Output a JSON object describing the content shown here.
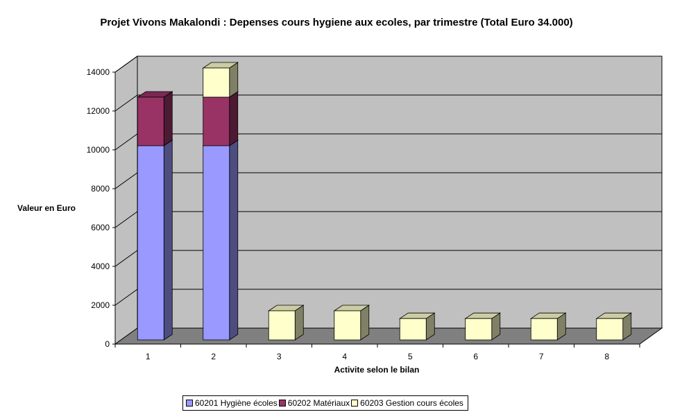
{
  "chart_data": {
    "type": "bar",
    "stacked": true,
    "three_d": true,
    "title": "Projet Vivons Makalondi : Depenses cours hygiene aux ecoles, par trimestre (Total Euro 34.000)",
    "xlabel": "Activite selon le bilan",
    "ylabel": "Valeur en Euro",
    "categories": [
      "1",
      "2",
      "3",
      "4",
      "5",
      "6",
      "7",
      "8"
    ],
    "ylim": [
      0,
      14000
    ],
    "yticks": [
      0,
      2000,
      4000,
      6000,
      8000,
      10000,
      12000,
      14000
    ],
    "grid": true,
    "legend_position": "bottom",
    "series": [
      {
        "name": "60201 Hygiène écoles",
        "color": "#9999FF",
        "values": [
          10000,
          10000,
          0,
          0,
          0,
          0,
          0,
          0
        ]
      },
      {
        "name": "60202 Matériaux",
        "color": "#993366",
        "values": [
          2500,
          2500,
          0,
          0,
          0,
          0,
          0,
          0
        ]
      },
      {
        "name": "60203 Gestion cours écoles",
        "color": "#FFFFCC",
        "values": [
          0,
          1500,
          1500,
          1500,
          1100,
          1100,
          1100,
          1100
        ]
      }
    ],
    "colors": {
      "wall": "#C0C0C0",
      "floor": "#808080",
      "gridline": "#000000"
    }
  }
}
